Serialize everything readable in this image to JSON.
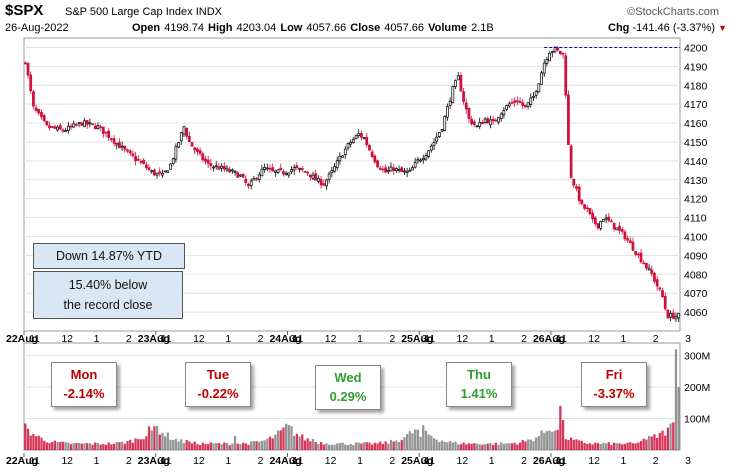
{
  "header": {
    "symbol": "$SPX",
    "name": "S&P 500 Large Cap Index",
    "exchange": "INDX",
    "date": "26-Aug-2022",
    "open_label": "Open",
    "open": "4198.74",
    "high_label": "High",
    "high": "4203.04",
    "low_label": "Low",
    "low": "4057.66",
    "close_label": "Close",
    "close": "4057.66",
    "volume_label": "Volume",
    "volume": "2.1B",
    "chg_label": "Chg",
    "chg": "-141.46 (-3.37%)",
    "source": "©StockCharts.com",
    "down_arrow": "▼"
  },
  "annotations": {
    "ytd": "Down 14.87% YTD",
    "record_line1": "15.40% below",
    "record_line2": "the record close"
  },
  "days": [
    {
      "day": "Mon",
      "pct": "-2.14%",
      "color": "#c00000"
    },
    {
      "day": "Tue",
      "pct": "-0.22%",
      "color": "#c00000"
    },
    {
      "day": "Wed",
      "pct": "0.29%",
      "color": "#2e9e2e"
    },
    {
      "day": "Thu",
      "pct": "1.41%",
      "color": "#2e9e2e"
    },
    {
      "day": "Fri",
      "pct": "-3.37%",
      "color": "#c00000"
    }
  ],
  "colors": {
    "up": "#000000",
    "down": "#d0103a",
    "vol_up": "#808080",
    "vol_down": "#d0103a",
    "ref_line": "#0000cc"
  },
  "chart_data": {
    "type": "candlestick",
    "ylim": [
      4050,
      4205
    ],
    "ytick_values": [
      4060,
      4070,
      4080,
      4090,
      4100,
      4110,
      4120,
      4130,
      4140,
      4150,
      4160,
      4170,
      4180,
      4190,
      4200
    ],
    "reference_line": 4200,
    "x_ticks": [
      [
        "22Aug",
        "11",
        "12",
        "1",
        "2",
        "3"
      ],
      [
        "23Aug",
        "11",
        "12",
        "1",
        "2",
        "3"
      ],
      [
        "24Aug",
        "11",
        "12",
        "1",
        "2",
        "3"
      ],
      [
        "25Aug",
        "11",
        "12",
        "1",
        "2",
        "3"
      ],
      [
        "26Aug",
        "11",
        "12",
        "1",
        "2",
        "3"
      ]
    ],
    "close_path": [
      [
        0,
        4193
      ],
      [
        3,
        4168
      ],
      [
        8,
        4158
      ],
      [
        14,
        4156
      ],
      [
        21,
        4160
      ],
      [
        27,
        4158
      ],
      [
        32,
        4152
      ],
      [
        38,
        4144
      ],
      [
        43,
        4139
      ],
      [
        47,
        4134
      ],
      [
        51,
        4132
      ],
      [
        54,
        4138
      ],
      [
        56,
        4146
      ],
      [
        59,
        4158
      ],
      [
        61,
        4150
      ],
      [
        64,
        4144
      ],
      [
        68,
        4138
      ],
      [
        73,
        4136
      ],
      [
        77,
        4134
      ],
      [
        80,
        4132
      ],
      [
        83,
        4126
      ],
      [
        86,
        4132
      ],
      [
        89,
        4136
      ],
      [
        92,
        4134
      ],
      [
        96,
        4134
      ],
      [
        100,
        4136
      ],
      [
        105,
        4134
      ],
      [
        108,
        4130
      ],
      [
        111,
        4128
      ],
      [
        114,
        4134
      ],
      [
        118,
        4144
      ],
      [
        121,
        4150
      ],
      [
        124,
        4154
      ],
      [
        126,
        4152
      ],
      [
        128,
        4146
      ],
      [
        131,
        4138
      ],
      [
        134,
        4134
      ],
      [
        137,
        4136
      ],
      [
        140,
        4134
      ],
      [
        143,
        4134
      ],
      [
        146,
        4140
      ],
      [
        149,
        4144
      ],
      [
        152,
        4150
      ],
      [
        155,
        4158
      ],
      [
        157,
        4168
      ],
      [
        159,
        4178
      ],
      [
        161,
        4184
      ],
      [
        163,
        4172
      ],
      [
        165,
        4162
      ],
      [
        168,
        4158
      ],
      [
        171,
        4162
      ],
      [
        174,
        4160
      ],
      [
        177,
        4166
      ],
      [
        180,
        4170
      ],
      [
        183,
        4172
      ],
      [
        186,
        4168
      ],
      [
        189,
        4174
      ],
      [
        191,
        4182
      ],
      [
        193,
        4192
      ],
      [
        195,
        4198
      ],
      [
        197,
        4199
      ],
      [
        200,
        4196
      ],
      [
        201,
        4176
      ],
      [
        202,
        4148
      ],
      [
        203,
        4132
      ],
      [
        205,
        4124
      ],
      [
        207,
        4116
      ],
      [
        209,
        4114
      ],
      [
        211,
        4108
      ],
      [
        213,
        4106
      ],
      [
        215,
        4110
      ],
      [
        217,
        4108
      ],
      [
        220,
        4104
      ],
      [
        223,
        4100
      ],
      [
        226,
        4094
      ],
      [
        229,
        4088
      ],
      [
        231,
        4084
      ],
      [
        233,
        4080
      ],
      [
        235,
        4074
      ],
      [
        237,
        4068
      ],
      [
        238,
        4062
      ],
      [
        239,
        4058
      ]
    ],
    "volume": {
      "ticks": [
        "100M",
        "200M",
        "300M"
      ],
      "typical": 20,
      "spikes": [
        [
          46,
          75
        ],
        [
          47,
          62
        ],
        [
          60,
          32
        ],
        [
          78,
          45
        ],
        [
          107,
          35
        ],
        [
          146,
          65
        ],
        [
          147,
          42
        ],
        [
          199,
          140
        ],
        [
          200,
          95
        ],
        [
          242,
          320
        ],
        [
          243,
          200
        ]
      ]
    }
  }
}
